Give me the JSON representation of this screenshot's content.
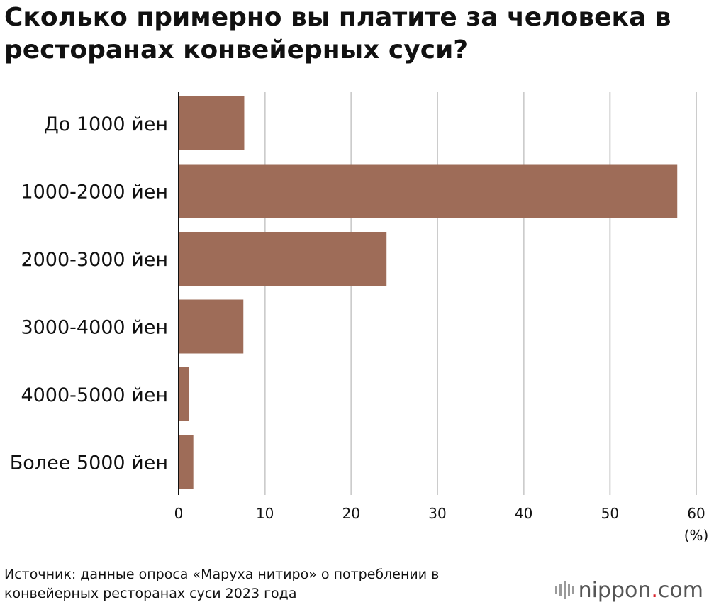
{
  "title": "Сколько примерно вы платите за человека в ресторанах конвейерных суси?",
  "source": "Источник: данные опроса «Маруха нитиро» о потреблении в конвейерных ресторанах суси 2023 года",
  "logo": {
    "name": "nippon",
    "dot": ".",
    "tld": "com",
    "icon": "nippon-bars-icon"
  },
  "colors": {
    "bar": "#9e6c58",
    "grid": "#cccccc",
    "axis": "#111111",
    "logo_dot": "#d9232d"
  },
  "chart_data": {
    "type": "bar",
    "orientation": "horizontal",
    "title": "Сколько примерно вы платите за человека в ресторанах конвейерных суси?",
    "categories": [
      "До 1000 йен",
      "1000-2000 йен",
      "2000-3000 йен",
      "3000-4000 йен",
      "4000-5000 йен",
      "Более 5000 йен"
    ],
    "values": [
      7.6,
      57.8,
      24.1,
      7.5,
      1.2,
      1.7
    ],
    "xlim": [
      0,
      60
    ],
    "xticks": [
      0,
      10,
      20,
      30,
      40,
      50,
      60
    ],
    "xunit": "(%)",
    "grid": true
  }
}
